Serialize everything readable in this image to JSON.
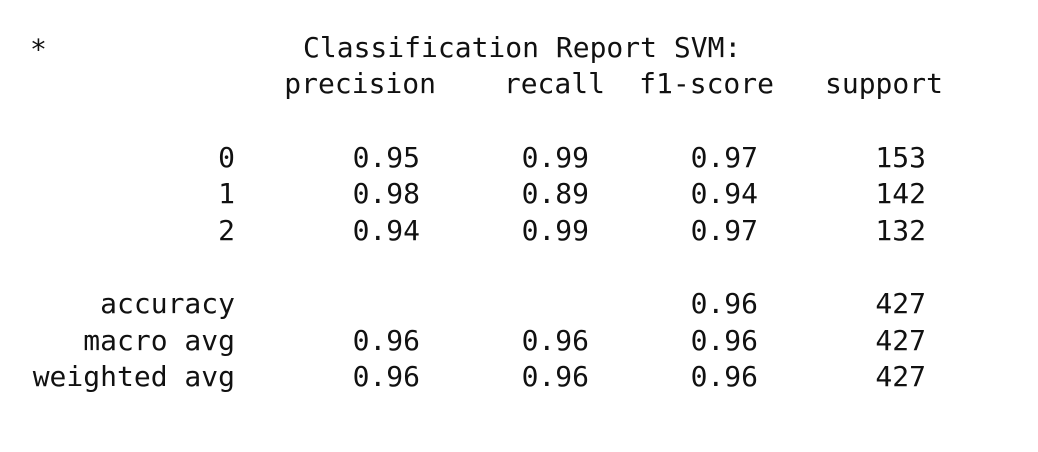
{
  "report": {
    "bullet": "*",
    "title": "Classification Report SVM:",
    "headers": {
      "precision": "precision",
      "recall": "recall",
      "f1": "f1-score",
      "support": "support"
    },
    "classes": [
      {
        "label": "0",
        "precision": "0.95",
        "recall": "0.99",
        "f1": "0.97",
        "support": "153"
      },
      {
        "label": "1",
        "precision": "0.98",
        "recall": "0.89",
        "f1": "0.94",
        "support": "142"
      },
      {
        "label": "2",
        "precision": "0.94",
        "recall": "0.99",
        "f1": "0.97",
        "support": "132"
      }
    ],
    "summary": [
      {
        "label": "accuracy",
        "precision": "",
        "recall": "",
        "f1": "0.96",
        "support": "427"
      },
      {
        "label": "macro avg",
        "precision": "0.96",
        "recall": "0.96",
        "f1": "0.96",
        "support": "427"
      },
      {
        "label": "weighted avg",
        "precision": "0.96",
        "recall": "0.96",
        "f1": "0.96",
        "support": "427"
      }
    ]
  }
}
